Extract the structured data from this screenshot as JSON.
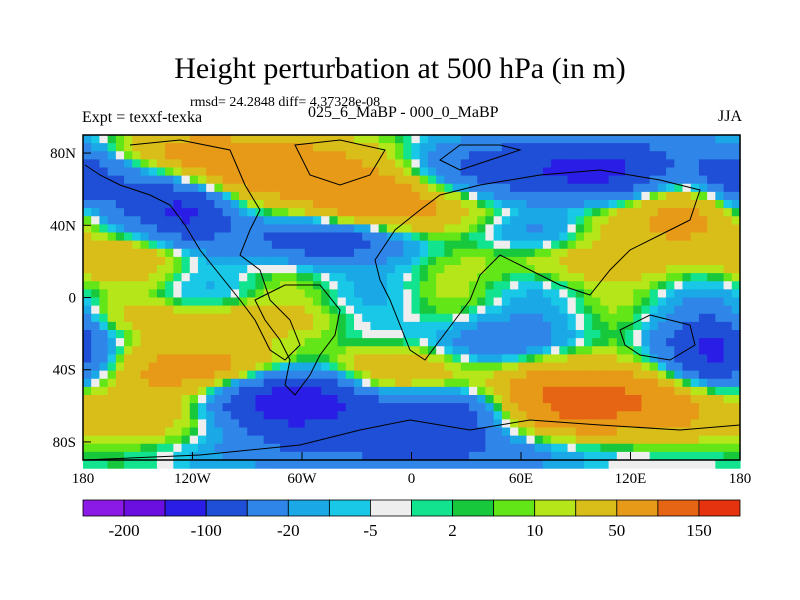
{
  "title": "Height perturbation at 500 hPa (in m)",
  "stats": "rmsd= 24.2848 diff= 4.37328e-08",
  "expt": "Expt = texxf-texka",
  "cases": "025_6_MaBP - 000_0_MaBP",
  "season": "JJA",
  "colors": {
    "levels": [
      "#8c1ae6",
      "#6a0fe0",
      "#2a1ee6",
      "#1f4fd6",
      "#2f86e8",
      "#1aa9e6",
      "#18c8e6",
      "#eeeeee",
      "#12e38f",
      "#18c83c",
      "#62e618",
      "#b5e619",
      "#d9be1a",
      "#e69a17",
      "#e66514",
      "#e6330f"
    ]
  },
  "chart_data": {
    "type": "heatmap",
    "title": "Height perturbation at 500 hPa (in m)",
    "x_ticks": [
      "180",
      "120W",
      "60W",
      "0",
      "60E",
      "120E",
      "180"
    ],
    "y_ticks": [
      "80N",
      "40N",
      "0",
      "40S",
      "80S"
    ],
    "colorbar_labels": [
      "-200",
      "-100",
      "-20",
      "-5",
      "2",
      "10",
      "50",
      "150"
    ],
    "levels": [
      -300,
      -200,
      -150,
      -100,
      -50,
      -20,
      -10,
      -5,
      -2,
      2,
      5,
      10,
      20,
      50,
      100,
      150,
      200
    ],
    "xlim": [
      -180,
      180
    ],
    "ylim": [
      -90,
      90
    ],
    "features": [
      {
        "lon": -120,
        "lat": 48,
        "amp": -110,
        "sx": 18,
        "sy": 12
      },
      {
        "lon": -150,
        "lat": 55,
        "amp": -40,
        "sx": 20,
        "sy": 12
      },
      {
        "lon": -75,
        "lat": 72,
        "amp": 90,
        "sx": 38,
        "sy": 13
      },
      {
        "lon": -130,
        "lat": 82,
        "amp": 40,
        "sx": 25,
        "sy": 8
      },
      {
        "lon": -10,
        "lat": 50,
        "amp": 85,
        "sx": 40,
        "sy": 12
      },
      {
        "lon": -45,
        "lat": 33,
        "amp": -95,
        "sx": 32,
        "sy": 9
      },
      {
        "lon": 70,
        "lat": 38,
        "amp": -35,
        "sx": 25,
        "sy": 9
      },
      {
        "lon": 90,
        "lat": 70,
        "amp": -120,
        "sx": 50,
        "sy": 13
      },
      {
        "lon": 150,
        "lat": 48,
        "amp": 70,
        "sx": 25,
        "sy": 15
      },
      {
        "lon": 105,
        "lat": 45,
        "amp": 35,
        "sx": 20,
        "sy": 12
      },
      {
        "lon": 175,
        "lat": 65,
        "amp": -70,
        "sx": 15,
        "sy": 12
      },
      {
        "lon": -115,
        "lat": -38,
        "amp": 70,
        "sx": 35,
        "sy": 10
      },
      {
        "lon": -65,
        "lat": -58,
        "amp": -130,
        "sx": 35,
        "sy": 12
      },
      {
        "lon": -150,
        "lat": -62,
        "amp": 55,
        "sx": 25,
        "sy": 14
      },
      {
        "lon": -5,
        "lat": -42,
        "amp": 60,
        "sx": 25,
        "sy": 10
      },
      {
        "lon": 20,
        "lat": -65,
        "amp": -80,
        "sx": 35,
        "sy": 11
      },
      {
        "lon": 100,
        "lat": -58,
        "amp": 140,
        "sx": 40,
        "sy": 14
      },
      {
        "lon": 45,
        "lat": -25,
        "amp": -40,
        "sx": 30,
        "sy": 10
      },
      {
        "lon": 165,
        "lat": -32,
        "amp": -120,
        "sx": 20,
        "sy": 15
      },
      {
        "lon": 0,
        "lat": -85,
        "amp": -50,
        "sx": 80,
        "sy": 8
      },
      {
        "lon": -160,
        "lat": 22,
        "amp": 40,
        "sx": 25,
        "sy": 8
      },
      {
        "lon": 100,
        "lat": 20,
        "amp": 30,
        "sx": 40,
        "sy": 8
      },
      {
        "lon": -110,
        "lat": -12,
        "amp": 40,
        "sx": 40,
        "sy": 6
      }
    ]
  }
}
